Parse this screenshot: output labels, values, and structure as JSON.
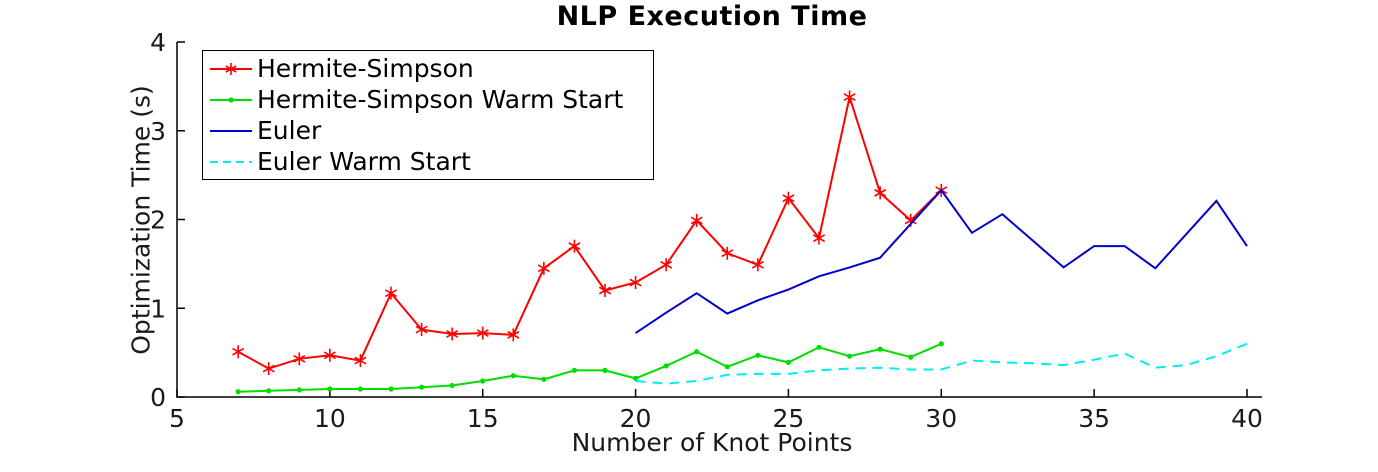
{
  "chart_data": {
    "type": "line",
    "title": "NLP Execution Time",
    "xlabel": "Number of Knot Points",
    "ylabel": "Optimization Time (s)",
    "xlim": [
      5,
      40.5
    ],
    "ylim": [
      0,
      4
    ],
    "xticks": [
      5,
      10,
      15,
      20,
      25,
      30,
      35,
      40
    ],
    "yticks": [
      0,
      1,
      2,
      3,
      4
    ],
    "grid": false,
    "legend_position": "top-left-inside",
    "axis_color": "#000000",
    "tick_label_color": "#1a1a1a",
    "series": [
      {
        "name": "Hermite-Simpson",
        "color": "#ff0000",
        "style": "solid",
        "marker": "asterisk",
        "x": [
          7,
          8,
          9,
          10,
          11,
          12,
          13,
          14,
          15,
          16,
          17,
          18,
          19,
          20,
          21,
          22,
          23,
          24,
          25,
          26,
          27,
          28,
          29,
          30
        ],
        "values": [
          0.51,
          0.32,
          0.43,
          0.47,
          0.41,
          1.17,
          0.76,
          0.71,
          0.72,
          0.7,
          1.45,
          1.7,
          1.2,
          1.29,
          1.49,
          1.99,
          1.62,
          1.49,
          2.24,
          1.79,
          3.38,
          2.3,
          1.99,
          2.33
        ]
      },
      {
        "name": "Hermite-Simpson Warm Start",
        "color": "#00dd00",
        "style": "solid",
        "marker": "dot",
        "x": [
          7,
          8,
          9,
          10,
          11,
          12,
          13,
          14,
          15,
          16,
          17,
          18,
          19,
          20,
          21,
          22,
          23,
          24,
          25,
          26,
          27,
          28,
          29,
          30
        ],
        "values": [
          0.06,
          0.07,
          0.08,
          0.09,
          0.09,
          0.09,
          0.11,
          0.13,
          0.18,
          0.24,
          0.2,
          0.3,
          0.3,
          0.21,
          0.35,
          0.51,
          0.34,
          0.47,
          0.39,
          0.56,
          0.46,
          0.54,
          0.45,
          0.6
        ]
      },
      {
        "name": "Euler",
        "color": "#0000cc",
        "style": "solid",
        "marker": "none",
        "x": [
          20,
          21,
          22,
          23,
          24,
          25,
          26,
          27,
          28,
          29,
          30,
          31,
          32,
          33,
          34,
          35,
          36,
          37,
          38,
          39,
          40
        ],
        "values": [
          0.72,
          0.95,
          1.17,
          0.94,
          1.09,
          1.21,
          1.36,
          1.46,
          1.57,
          1.95,
          2.33,
          1.85,
          2.06,
          1.76,
          1.46,
          1.7,
          1.7,
          1.45,
          1.83,
          2.21,
          1.7
        ]
      },
      {
        "name": "Euler Warm Start",
        "color": "#00eeee",
        "style": "dashed",
        "marker": "none",
        "x": [
          20,
          21,
          22,
          23,
          24,
          25,
          26,
          27,
          28,
          29,
          30,
          31,
          32,
          33,
          34,
          35,
          36,
          37,
          38,
          39,
          40
        ],
        "values": [
          0.18,
          0.15,
          0.18,
          0.25,
          0.26,
          0.26,
          0.3,
          0.32,
          0.33,
          0.31,
          0.31,
          0.41,
          0.39,
          0.38,
          0.36,
          0.42,
          0.49,
          0.33,
          0.36,
          0.46,
          0.6
        ]
      }
    ]
  }
}
